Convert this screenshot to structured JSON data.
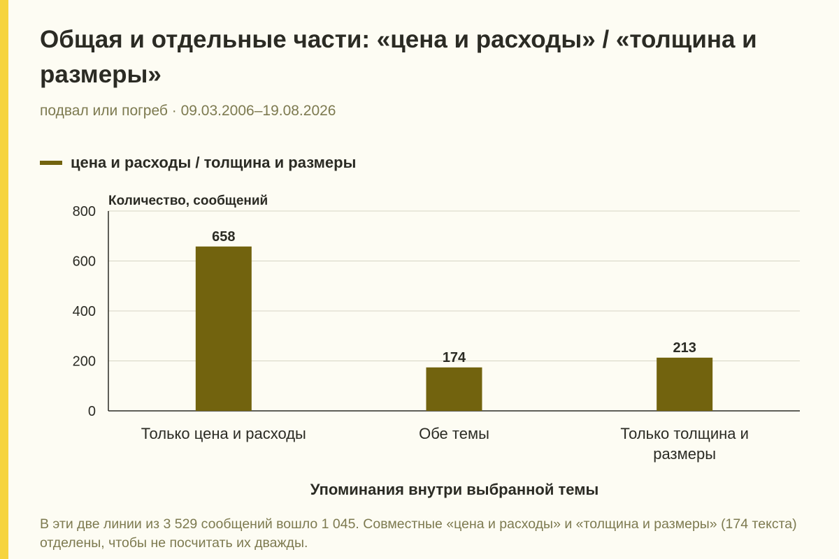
{
  "colors": {
    "accent_stripe": "#f6d43f",
    "bar": "#72630e",
    "background": "#fdfcf3"
  },
  "header": {
    "title": "Общая и отдельные части: «цена и расходы» / «толщина и размеры»",
    "subtitle": "подвал или погреб · 09.03.2006–19.08.2026"
  },
  "footnote": "В эти две линии из 3 529 сообщений вошло 1 045. Совместные «цена и расходы» и «толщина и размеры» (174 текста) отделены, чтобы не посчитать их дважды.",
  "chart_data": {
    "type": "bar",
    "categories": [
      [
        "Только цена и расходы"
      ],
      [
        "Обе темы"
      ],
      [
        "Только толщина и",
        "размеры"
      ]
    ],
    "series": [
      {
        "name": "цена и расходы / толщина и размеры",
        "values": [
          658,
          174,
          213
        ]
      }
    ],
    "data_labels": [
      "658",
      "174",
      "213"
    ],
    "xlabel": "Упоминания внутри выбранной темы",
    "ylabel": "Количество, сообщений",
    "ylim": [
      0,
      800
    ],
    "yticks": [
      0,
      200,
      400,
      600,
      800
    ],
    "grid": true,
    "legend_position": "top-left"
  }
}
